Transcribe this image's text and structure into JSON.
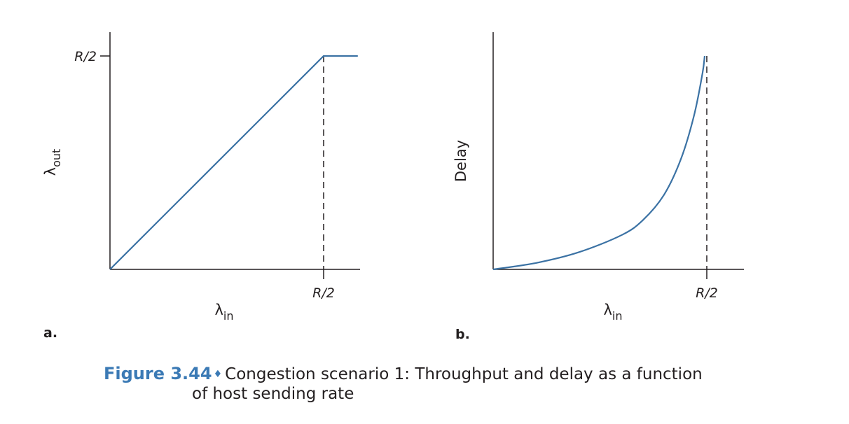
{
  "chart_data": [
    {
      "type": "line",
      "panel": "a.",
      "xlabel": "λ",
      "xlabel_sub": "in",
      "ylabel": "λ",
      "ylabel_sub": "out",
      "xticks": [
        {
          "value": 0.5,
          "label": "R/2"
        }
      ],
      "yticks": [
        {
          "value": 0.5,
          "label": "R/2"
        }
      ],
      "xlim": [
        0,
        0.58
      ],
      "ylim": [
        0,
        0.55
      ],
      "reference_lines": [
        {
          "axis": "x",
          "value": 0.5,
          "style": "dashed"
        }
      ],
      "series": [
        {
          "x": [
            0,
            0.5,
            0.58
          ],
          "y": [
            0,
            0.5,
            0.5
          ]
        }
      ]
    },
    {
      "type": "line",
      "panel": "b.",
      "xlabel": "λ",
      "xlabel_sub": "in",
      "ylabel": "Delay",
      "xticks": [
        {
          "value": 0.5,
          "label": "R/2"
        }
      ],
      "xlim": [
        0,
        0.58
      ],
      "ylim": [
        0,
        1
      ],
      "reference_lines": [
        {
          "axis": "x",
          "value": 0.5,
          "style": "dashed"
        }
      ],
      "series": [
        {
          "x": [
            0,
            0.1,
            0.2,
            0.3,
            0.35,
            0.4,
            0.44,
            0.47,
            0.49,
            0.495
          ],
          "y": [
            0,
            0.03,
            0.08,
            0.16,
            0.23,
            0.35,
            0.52,
            0.72,
            0.92,
            1.0
          ]
        }
      ]
    }
  ],
  "caption": {
    "number": "Figure 3.44",
    "line1": "Congestion scenario 1: Throughput and delay as a function",
    "line2": "of host sending rate"
  },
  "colors": {
    "curve": "#3b72a4",
    "caption_accent": "#3b7ab5",
    "ink": "#231f20"
  }
}
